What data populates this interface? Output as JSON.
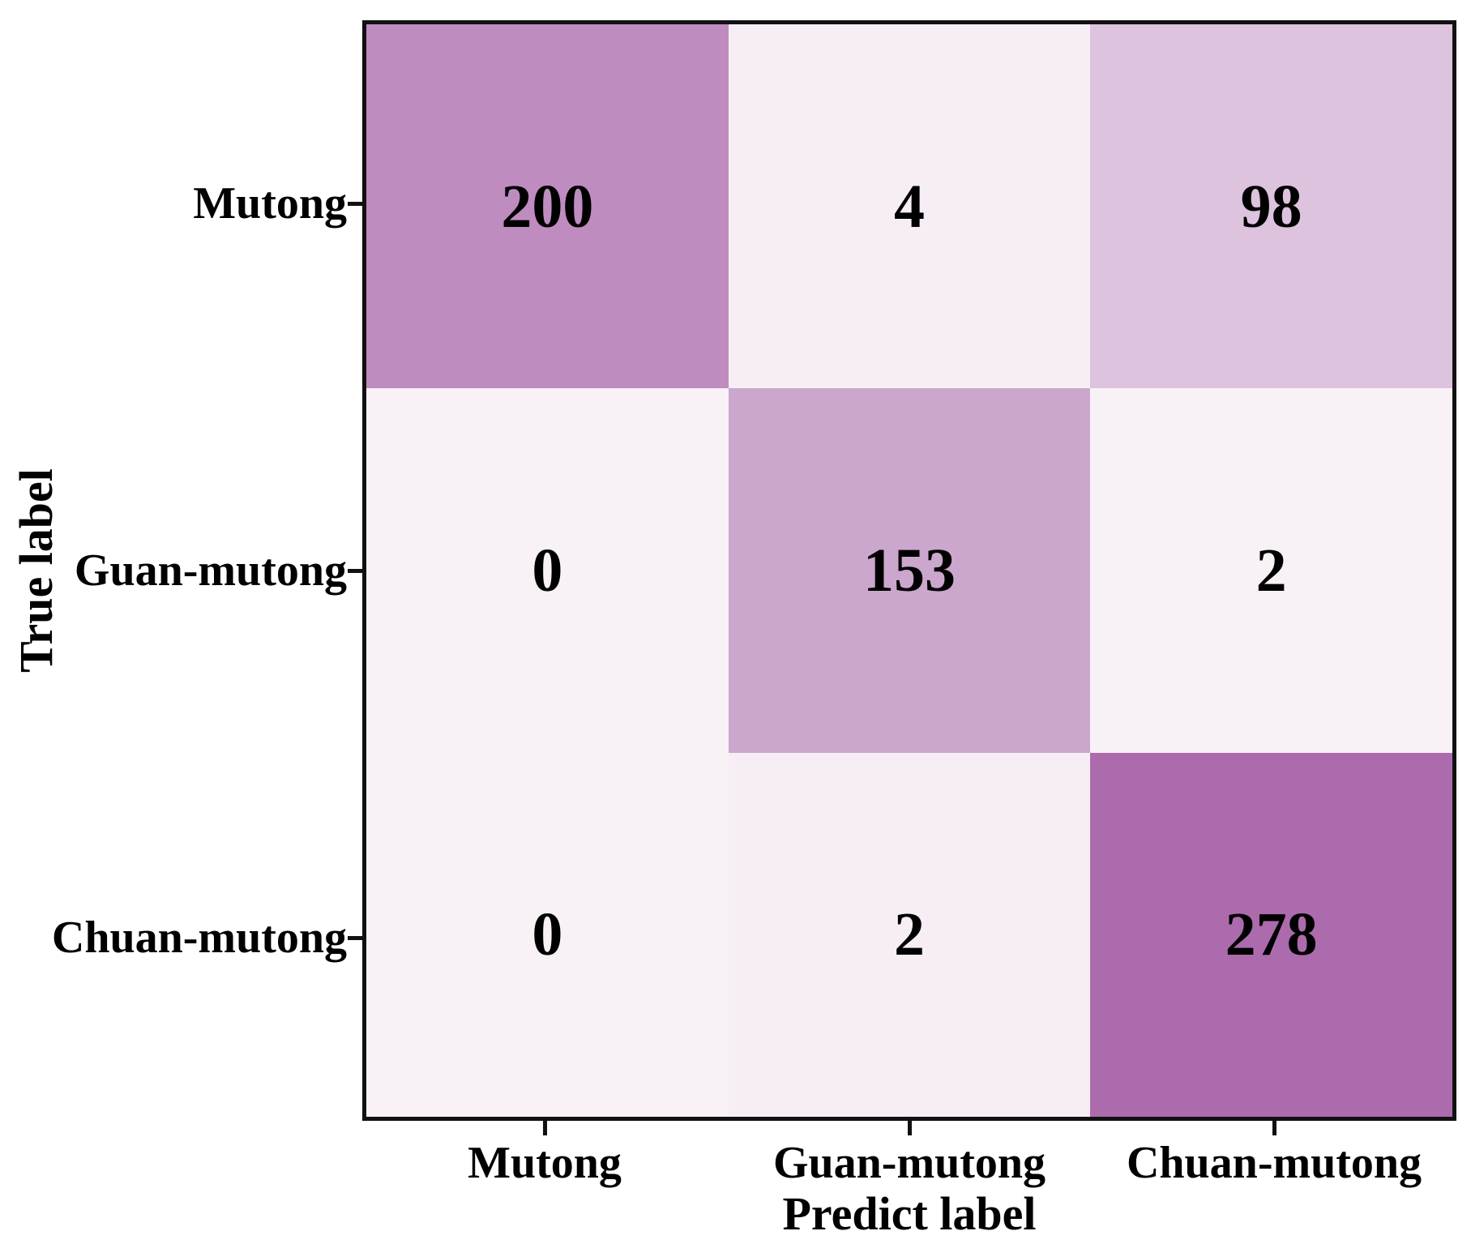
{
  "chart_data": {
    "type": "heatmap",
    "subtype": "confusion-matrix",
    "title": "",
    "xlabel": "Predict label",
    "ylabel": "True label",
    "predict_labels": [
      "Mutong",
      "Guan-mutong",
      "Chuan-mutong"
    ],
    "true_labels": [
      "Mutong",
      "Guan-mutong",
      "Chuan-mutong"
    ],
    "matrix": [
      [
        200,
        4,
        98
      ],
      [
        0,
        153,
        2
      ],
      [
        0,
        2,
        278
      ]
    ],
    "value_range": [
      0,
      278
    ],
    "cell_colors": [
      [
        "#bf8cc0",
        "#f6eef4",
        "#ddc3de"
      ],
      [
        "#f8f1f6",
        "#cba6cd",
        "#f8f1f6"
      ],
      [
        "#f8f1f6",
        "#f6eef4",
        "#ac6bad"
      ]
    ],
    "colormap": {
      "min_color": "#f9f2f8",
      "max_color": "#ac6bad"
    },
    "axis_border_color": "#111111",
    "text_color": "#000000",
    "background_color": "#ffffff",
    "grid": false,
    "legend": "none"
  }
}
